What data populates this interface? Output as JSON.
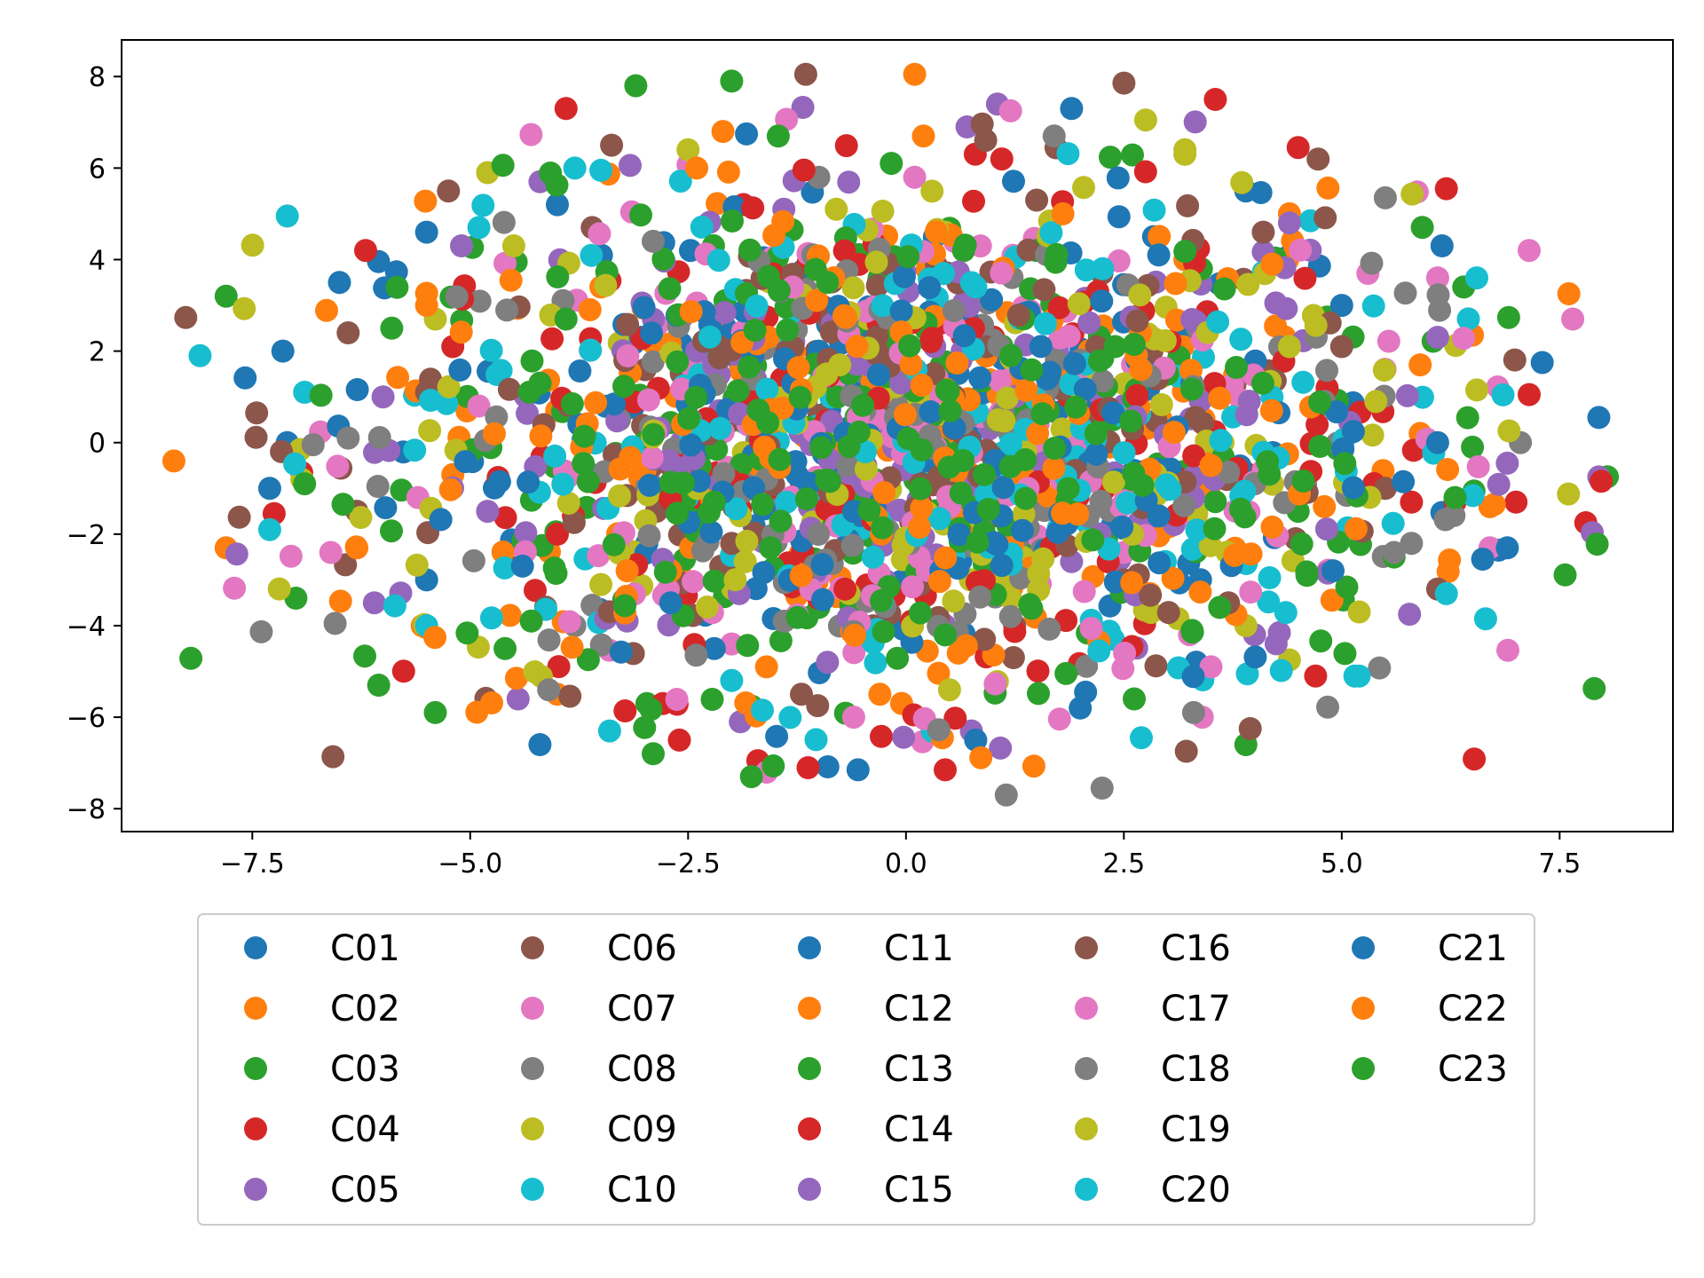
{
  "chart_data": {
    "type": "scatter",
    "title": "",
    "xlabel": "",
    "ylabel": "",
    "xlim": [
      -9.0,
      8.8
    ],
    "ylim": [
      -8.5,
      8.8
    ],
    "xticks": [
      -7.5,
      -5.0,
      -2.5,
      0.0,
      2.5,
      5.0,
      7.5
    ],
    "xtick_labels": [
      "−7.5",
      "−5.0",
      "−2.5",
      "0.0",
      "2.5",
      "5.0",
      "7.5"
    ],
    "yticks": [
      -8,
      -6,
      -4,
      -2,
      0,
      2,
      4,
      6,
      8
    ],
    "ytick_labels": [
      "−8",
      "−6",
      "−4",
      "−2",
      "0",
      "2",
      "4",
      "6",
      "8"
    ],
    "grid": false,
    "legend": {
      "placement": "below",
      "columns": 5,
      "frame": true
    },
    "notes": "Dense cloud of ~2000 points; outlier points listed per series, interior filled with per-series points distributed as estimated elliptical cloud.",
    "series": [
      {
        "name": "C01",
        "color": "#1f77b4",
        "points": [
          [
            7.95,
            0.55
          ],
          [
            7.3,
            1.75
          ],
          [
            6.8,
            -2.35
          ],
          [
            -4.2,
            -6.6
          ],
          [
            -0.55,
            -7.15
          ],
          [
            1.9,
            7.3
          ],
          [
            -7.15,
            2.0
          ],
          [
            -7.1,
            0.0
          ],
          [
            6.15,
            4.3
          ],
          [
            -5.5,
            4.6
          ]
        ]
      },
      {
        "name": "C02",
        "color": "#ff7f0e",
        "points": [
          [
            -8.4,
            -0.4
          ],
          [
            -7.8,
            -2.3
          ],
          [
            0.1,
            8.05
          ],
          [
            6.7,
            -1.4
          ],
          [
            6.5,
            2.35
          ],
          [
            -5.55,
            -4.0
          ],
          [
            -0.05,
            -5.7
          ],
          [
            -4.0,
            -5.5
          ],
          [
            4.4,
            5.0
          ],
          [
            -2.1,
            6.8
          ]
        ]
      },
      {
        "name": "C03",
        "color": "#2ca02c",
        "points": [
          [
            -7.8,
            3.2
          ],
          [
            -7.0,
            -3.4
          ],
          [
            -6.05,
            -5.3
          ],
          [
            -5.4,
            -5.9
          ],
          [
            -2.9,
            -6.8
          ],
          [
            -3.1,
            7.8
          ],
          [
            -2.0,
            7.9
          ],
          [
            3.9,
            -6.6
          ],
          [
            6.5,
            -0.1
          ],
          [
            6.4,
            3.4
          ]
        ]
      },
      {
        "name": "C04",
        "color": "#d62728",
        "points": [
          [
            7.8,
            -1.75
          ],
          [
            7.15,
            1.05
          ],
          [
            6.2,
            5.55
          ],
          [
            3.55,
            7.5
          ],
          [
            -3.9,
            7.3
          ],
          [
            0.45,
            -7.15
          ],
          [
            -1.7,
            -6.95
          ],
          [
            -7.25,
            -1.55
          ],
          [
            7.0,
            -1.3
          ],
          [
            4.5,
            6.45
          ]
        ]
      },
      {
        "name": "C05",
        "color": "#9467bd",
        "points": [
          [
            7.95,
            -0.75
          ],
          [
            1.05,
            7.4
          ],
          [
            -4.45,
            -5.6
          ],
          [
            -1.9,
            -6.1
          ],
          [
            -4.2,
            5.7
          ],
          [
            6.9,
            -0.45
          ],
          [
            -6.1,
            -3.5
          ],
          [
            0.75,
            -6.3
          ],
          [
            -6.0,
            1.0
          ],
          [
            4.0,
            -4.2
          ]
        ]
      },
      {
        "name": "C06",
        "color": "#8c564b",
        "points": [
          [
            -7.45,
            0.65
          ],
          [
            -1.15,
            8.05
          ],
          [
            3.95,
            -6.25
          ],
          [
            -5.25,
            5.5
          ],
          [
            2.5,
            -3.0
          ],
          [
            -6.3,
            -1.5
          ],
          [
            4.1,
            4.6
          ],
          [
            -1.2,
            -5.5
          ],
          [
            5.5,
            -1.0
          ],
          [
            1.5,
            5.3
          ]
        ]
      },
      {
        "name": "C07",
        "color": "#e377c2",
        "points": [
          [
            7.15,
            4.2
          ],
          [
            7.65,
            2.7
          ],
          [
            -1.6,
            -7.2
          ],
          [
            1.2,
            7.25
          ],
          [
            -6.6,
            -2.4
          ],
          [
            6.7,
            -2.3
          ],
          [
            3.4,
            -6.0
          ],
          [
            -2.0,
            -4.4
          ],
          [
            2.5,
            -2.4
          ],
          [
            6.1,
            3.6
          ]
        ]
      },
      {
        "name": "C08",
        "color": "#7f7f7f",
        "points": [
          [
            1.15,
            -7.7
          ],
          [
            2.25,
            -7.55
          ],
          [
            -6.55,
            -3.95
          ],
          [
            5.5,
            5.35
          ],
          [
            7.05,
            0.0
          ],
          [
            -3.8,
            -4.0
          ],
          [
            1.7,
            6.7
          ],
          [
            -1.0,
            5.8
          ],
          [
            5.8,
            -2.2
          ],
          [
            -4.2,
            1.3
          ]
        ]
      },
      {
        "name": "C09",
        "color": "#bcbd22",
        "points": [
          [
            2.75,
            7.05
          ],
          [
            3.2,
            6.3
          ],
          [
            6.55,
            1.15
          ],
          [
            4.4,
            -4.75
          ],
          [
            -6.95,
            -0.15
          ],
          [
            -4.8,
            5.9
          ],
          [
            0.45,
            4.6
          ],
          [
            1.2,
            -3.4
          ],
          [
            -2.5,
            6.4
          ],
          [
            3.9,
            -4.0
          ]
        ]
      },
      {
        "name": "C10",
        "color": "#17becf",
        "points": [
          [
            -8.1,
            1.9
          ],
          [
            -7.3,
            -1.9
          ],
          [
            6.65,
            -3.85
          ],
          [
            6.55,
            3.6
          ],
          [
            0.3,
            -6.3
          ],
          [
            5.15,
            -5.1
          ],
          [
            -3.4,
            -6.3
          ],
          [
            -6.9,
            1.1
          ],
          [
            -3.5,
            5.95
          ],
          [
            2.7,
            -6.45
          ]
        ]
      },
      {
        "name": "C11",
        "color": "#1f77b4",
        "points": [
          [
            -7.3,
            -1.0
          ],
          [
            6.9,
            -2.3
          ],
          [
            0.8,
            -6.5
          ],
          [
            -4.0,
            5.2
          ],
          [
            3.9,
            5.5
          ],
          [
            -5.5,
            -3.0
          ],
          [
            2.0,
            -5.8
          ],
          [
            -2.2,
            -4.5
          ],
          [
            5.0,
            3.0
          ],
          [
            -1.0,
            2.0
          ]
        ]
      },
      {
        "name": "C12",
        "color": "#ff7f0e",
        "points": [
          [
            6.75,
            -1.35
          ],
          [
            -5.2,
            -0.7
          ],
          [
            4.8,
            -1.4
          ],
          [
            -3.5,
            3.4
          ],
          [
            2.8,
            -3.3
          ],
          [
            -0.3,
            -5.5
          ],
          [
            0.2,
            6.7
          ],
          [
            5.9,
            0.2
          ],
          [
            -2.7,
            -2.8
          ],
          [
            3.2,
            4.0
          ]
        ]
      },
      {
        "name": "C13",
        "color": "#2ca02c",
        "points": [
          [
            -5.9,
            2.5
          ],
          [
            5.6,
            -2.5
          ],
          [
            -4.6,
            -4.5
          ],
          [
            4.5,
            -1.5
          ],
          [
            -1.0,
            -3.6
          ],
          [
            1.5,
            4.2
          ],
          [
            -3.0,
            0.0
          ],
          [
            3.0,
            1.5
          ],
          [
            0.0,
            0.0
          ],
          [
            -0.5,
            1.0
          ]
        ]
      },
      {
        "name": "C14",
        "color": "#d62728",
        "points": [
          [
            -6.2,
            4.2
          ],
          [
            5.8,
            -1.3
          ],
          [
            -5.2,
            2.1
          ],
          [
            4.7,
            -5.1
          ],
          [
            -2.6,
            -6.5
          ],
          [
            1.1,
            6.2
          ],
          [
            -0.7,
            -3.2
          ],
          [
            2.2,
            3.3
          ],
          [
            6.3,
            -1.3
          ],
          [
            -4.0,
            -2.0
          ]
        ]
      },
      {
        "name": "C15",
        "color": "#9467bd",
        "points": [
          [
            -5.1,
            4.3
          ],
          [
            6.1,
            2.3
          ],
          [
            -2.4,
            2.0
          ],
          [
            3.3,
            -1.2
          ],
          [
            -0.9,
            -4.8
          ],
          [
            0.7,
            6.9
          ],
          [
            -4.8,
            -1.5
          ],
          [
            4.4,
            4.8
          ],
          [
            1.9,
            -2.6
          ],
          [
            -3.2,
            -3.9
          ]
        ]
      },
      {
        "name": "C16",
        "color": "#8c564b",
        "points": [
          [
            -5.5,
            1.1
          ],
          [
            5.0,
            2.1
          ],
          [
            -2.0,
            -2.2
          ],
          [
            2.6,
            0.3
          ],
          [
            -0.2,
            3.9
          ],
          [
            0.9,
            -4.3
          ],
          [
            -3.6,
            4.7
          ],
          [
            3.7,
            -3.5
          ],
          [
            6.1,
            -3.2
          ],
          [
            -6.4,
            2.4
          ]
        ]
      },
      {
        "name": "C17",
        "color": "#e377c2",
        "points": [
          [
            -5.6,
            -1.2
          ],
          [
            5.3,
            3.7
          ],
          [
            -1.3,
            3.4
          ],
          [
            1.4,
            -1.0
          ],
          [
            -3.3,
            -2.3
          ],
          [
            3.5,
            -4.9
          ],
          [
            0.1,
            5.8
          ],
          [
            -4.9,
            0.8
          ],
          [
            4.1,
            -0.6
          ],
          [
            -0.6,
            -6.0
          ]
        ]
      },
      {
        "name": "C18",
        "color": "#7f7f7f",
        "points": [
          [
            -6.4,
            0.1
          ],
          [
            5.6,
            -2.4
          ],
          [
            -2.9,
            4.4
          ],
          [
            2.0,
            1.8
          ],
          [
            -1.6,
            -0.8
          ],
          [
            1.2,
            -3.8
          ],
          [
            -4.1,
            -5.4
          ],
          [
            3.3,
            -5.9
          ],
          [
            4.8,
            0.9
          ],
          [
            -0.3,
            2.9
          ]
        ]
      },
      {
        "name": "C19",
        "color": "#bcbd22",
        "points": [
          [
            -4.5,
            4.3
          ],
          [
            4.4,
            2.1
          ],
          [
            -1.9,
            -1.6
          ],
          [
            2.6,
            -2.0
          ],
          [
            -0.8,
            5.1
          ],
          [
            0.5,
            -5.4
          ],
          [
            -3.5,
            -3.1
          ],
          [
            3.2,
            6.4
          ],
          [
            5.2,
            -3.7
          ],
          [
            -5.4,
            2.7
          ]
        ]
      },
      {
        "name": "C20",
        "color": "#17becf",
        "points": [
          [
            -5.5,
            -4.0
          ],
          [
            6.2,
            -3.3
          ],
          [
            -3.8,
            6.0
          ],
          [
            4.2,
            1.0
          ],
          [
            -2.0,
            -5.2
          ],
          [
            1.6,
            2.6
          ],
          [
            -0.3,
            -1.7
          ],
          [
            0.8,
            3.4
          ],
          [
            -4.9,
            4.7
          ],
          [
            5.2,
            -5.1
          ]
        ]
      },
      {
        "name": "C21",
        "color": "#1f77b4",
        "points": [
          [
            -6.5,
            3.5
          ],
          [
            6.1,
            0.0
          ],
          [
            -4.4,
            -2.7
          ],
          [
            4.9,
            -2.8
          ],
          [
            -1.3,
            1.3
          ],
          [
            1.1,
            -1.6
          ],
          [
            -2.7,
            -3.5
          ],
          [
            2.9,
            4.1
          ],
          [
            0.4,
            -2.8
          ],
          [
            -0.7,
            0.2
          ]
        ]
      },
      {
        "name": "C22",
        "color": "#ff7f0e",
        "points": [
          [
            -6.3,
            -2.3
          ],
          [
            5.9,
            1.7
          ],
          [
            -3.2,
            -2.8
          ],
          [
            3.5,
            -0.5
          ],
          [
            -1.6,
            -4.9
          ],
          [
            1.8,
            5.0
          ],
          [
            -5.5,
            3.0
          ],
          [
            4.2,
            3.9
          ],
          [
            0.6,
            -4.6
          ],
          [
            -2.4,
            6.0
          ]
        ]
      },
      {
        "name": "C23",
        "color": "#2ca02c",
        "points": [
          [
            -6.9,
            -0.9
          ],
          [
            6.3,
            -1.2
          ],
          [
            -4.3,
            -3.9
          ],
          [
            4.6,
            -2.9
          ],
          [
            -2.2,
            -1.3
          ],
          [
            2.4,
            2.1
          ],
          [
            -0.9,
            3.5
          ],
          [
            0.9,
            -0.7
          ],
          [
            -3.9,
            2.7
          ],
          [
            3.6,
            -3.6
          ]
        ]
      }
    ]
  }
}
